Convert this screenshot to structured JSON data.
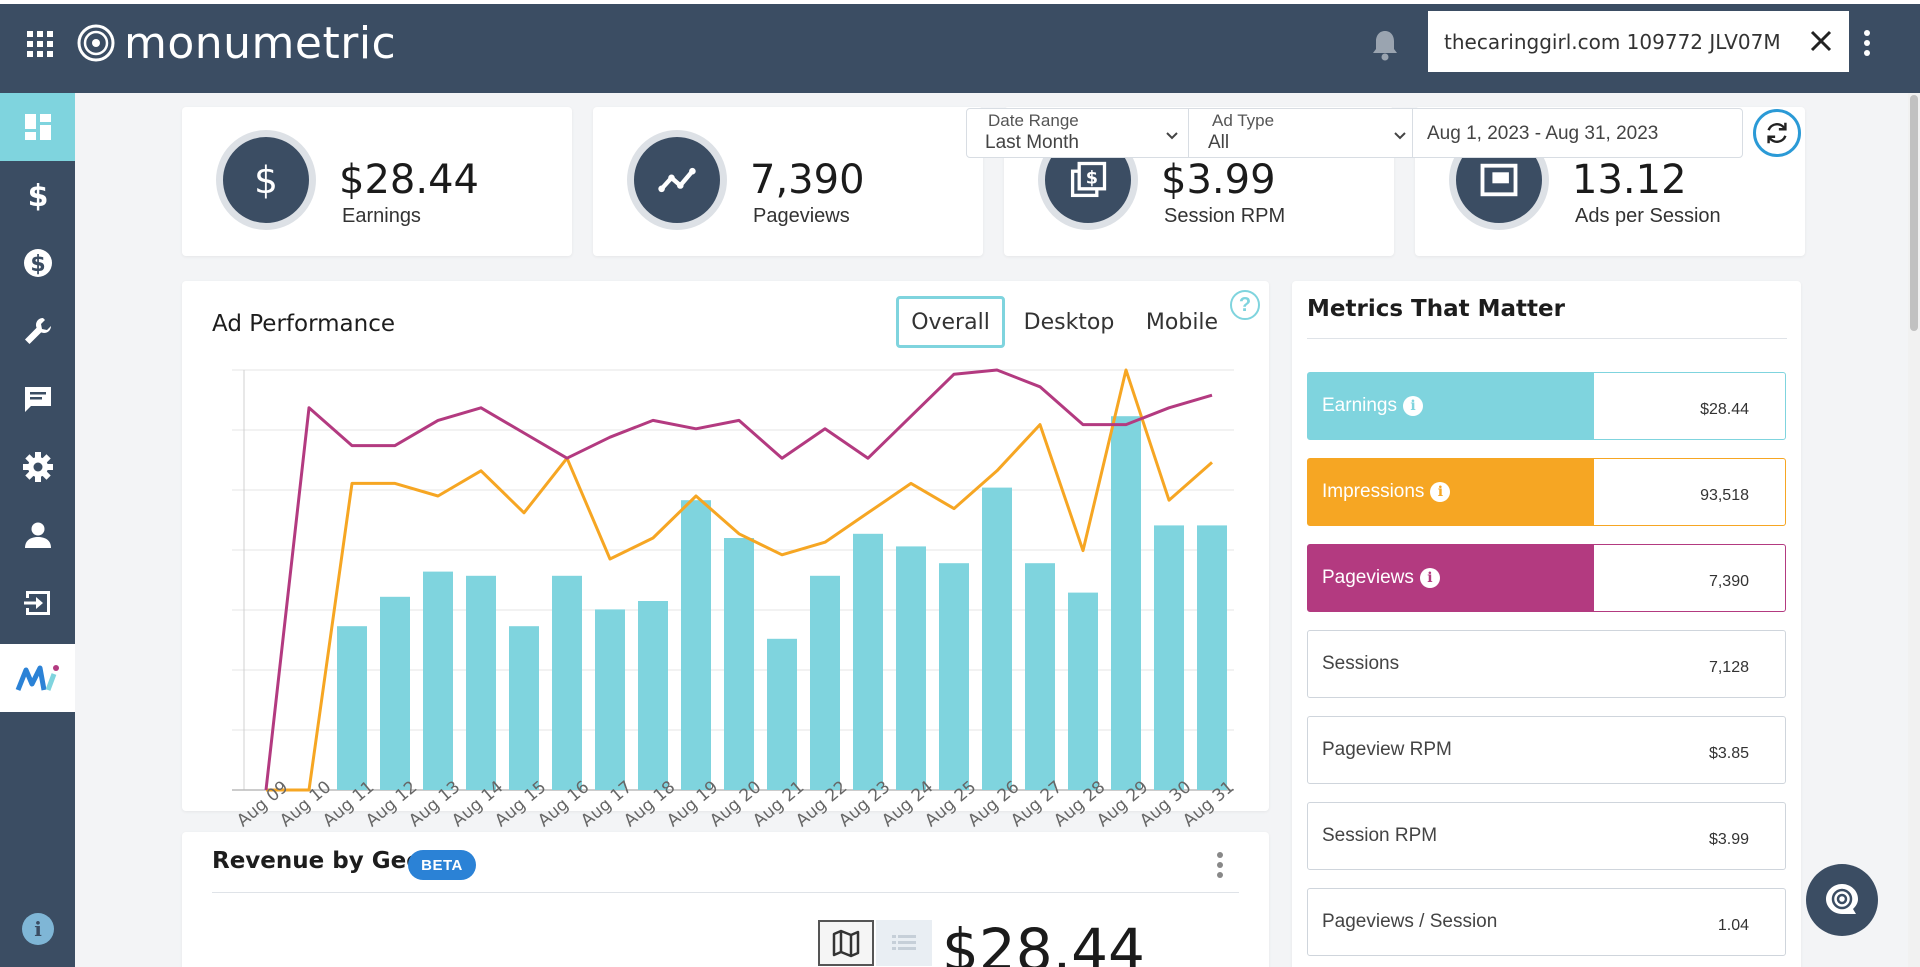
{
  "header": {
    "app_name": "monumetric",
    "site_selector": "thecaringgirl.com 109772 JLV07M"
  },
  "sidebar": {
    "items": [
      {
        "name": "dashboard-icon",
        "active": true
      },
      {
        "name": "dollar-icon"
      },
      {
        "name": "dollar-circle-icon"
      },
      {
        "name": "wrench-icon"
      },
      {
        "name": "message-icon"
      },
      {
        "name": "gear-icon"
      },
      {
        "name": "user-icon"
      },
      {
        "name": "logout-icon"
      },
      {
        "name": "monumetric-brand-icon"
      }
    ],
    "info": "i"
  },
  "stats": [
    {
      "value": "$28.44",
      "label": "Earnings",
      "icon": "dollar-icon"
    },
    {
      "value": "7,390",
      "label": "Pageviews",
      "icon": "trend-line-icon"
    },
    {
      "value": "$3.99",
      "label": "Session RPM",
      "icon": "money-stack-icon"
    },
    {
      "value": "13.12",
      "label": "Ads per Session",
      "icon": "window-icon"
    }
  ],
  "filters": {
    "date_range_label": "Date Range",
    "date_range_value": "Last Month",
    "ad_type_label": "Ad Type",
    "ad_type_value": "All",
    "date_span": "Aug 1, 2023 - Aug 31, 2023"
  },
  "ad_performance": {
    "title": "Ad Performance",
    "tabs": [
      "Overall",
      "Desktop",
      "Mobile"
    ],
    "active_tab": "Overall",
    "help": "?"
  },
  "chart_data": {
    "type": "bar",
    "categories": [
      "Aug 09",
      "Aug 10",
      "Aug 11",
      "Aug 12",
      "Aug 13",
      "Aug 14",
      "Aug 15",
      "Aug 16",
      "Aug 17",
      "Aug 18",
      "Aug 19",
      "Aug 20",
      "Aug 21",
      "Aug 22",
      "Aug 23",
      "Aug 24",
      "Aug 25",
      "Aug 26",
      "Aug 27",
      "Aug 28",
      "Aug 29",
      "Aug 30",
      "Aug 31"
    ],
    "series": [
      {
        "kind": "bar",
        "color": "#7fd4de",
        "values": [
          0,
          0,
          0.39,
          0.46,
          0.52,
          0.51,
          0.39,
          0.51,
          0.43,
          0.45,
          0.69,
          0.6,
          0.36,
          0.51,
          0.61,
          0.58,
          0.54,
          0.72,
          0.54,
          0.47,
          0.89,
          0.63,
          0.63
        ]
      },
      {
        "kind": "line",
        "color": "#f6a623",
        "values": [
          0,
          0,
          0.73,
          0.73,
          0.7,
          0.76,
          0.66,
          0.79,
          0.55,
          0.6,
          0.7,
          0.61,
          0.56,
          0.59,
          0.66,
          0.73,
          0.67,
          0.76,
          0.87,
          0.57,
          1.0,
          0.69,
          0.78
        ]
      },
      {
        "kind": "line",
        "color": "#b33a80",
        "values": [
          0,
          0.91,
          0.82,
          0.82,
          0.88,
          0.91,
          0.85,
          0.79,
          0.84,
          0.88,
          0.86,
          0.88,
          0.79,
          0.86,
          0.79,
          0.89,
          0.99,
          1.0,
          0.96,
          0.87,
          0.87,
          0.91,
          0.94
        ]
      }
    ],
    "xlabel": "",
    "ylabel": "",
    "ylim": [
      0,
      1
    ],
    "grid": true,
    "legend": "none"
  },
  "revenue_geo": {
    "title": "Revenue by Geo",
    "badge": "BETA",
    "total": "$28.44"
  },
  "metrics": {
    "title": "Metrics That Matter",
    "rows": [
      {
        "label": "Earnings",
        "value": "$28.44",
        "color": "#7fd4de",
        "info": "i"
      },
      {
        "label": "Impressions",
        "value": "93,518",
        "color": "#f6a623",
        "info": "i"
      },
      {
        "label": "Pageviews",
        "value": "7,390",
        "color": "#b33a80",
        "info": "i"
      },
      {
        "label": "Sessions",
        "value": "7,128"
      },
      {
        "label": "Pageview RPM",
        "value": "$3.85"
      },
      {
        "label": "Session RPM",
        "value": "$3.99"
      },
      {
        "label": "Pageviews / Session",
        "value": "1.04"
      }
    ]
  }
}
